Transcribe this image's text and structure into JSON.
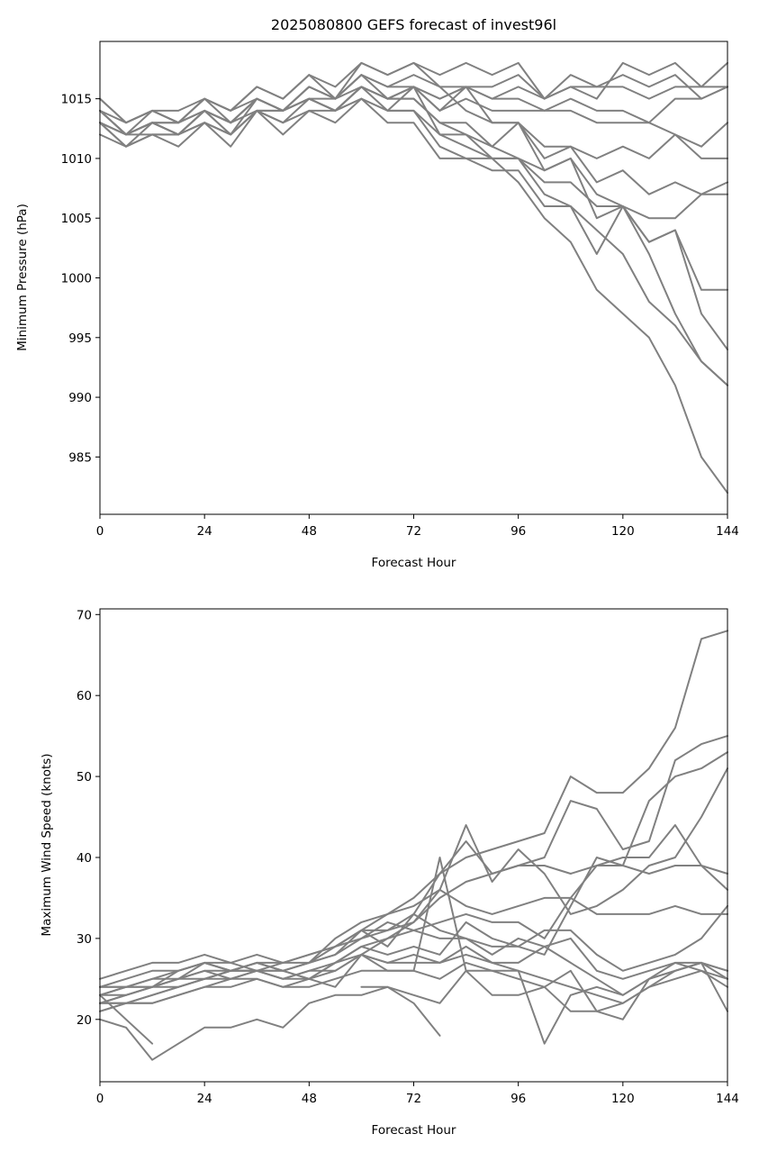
{
  "figure": {
    "title": "2025080800 GEFS forecast of invest96l"
  },
  "chart_data": [
    {
      "type": "line",
      "title": "2025080800 GEFS forecast of invest96l",
      "xlabel": "Forecast Hour",
      "ylabel": "Minimum Pressure (hPa)",
      "xlim": [
        0,
        144
      ],
      "ylim": [
        980.2,
        1019.8
      ],
      "xticks": [
        0,
        24,
        48,
        72,
        96,
        120,
        144
      ],
      "yticks": [
        985,
        990,
        995,
        1000,
        1005,
        1010,
        1015
      ],
      "grid": false,
      "line_color": "#808080",
      "x": [
        0,
        6,
        12,
        18,
        24,
        30,
        36,
        42,
        48,
        54,
        60,
        66,
        72,
        78,
        84,
        90,
        96,
        102,
        108,
        114,
        120,
        126,
        132,
        138,
        144
      ],
      "series": [
        {
          "values": [
            1015,
            1013,
            1014,
            1013,
            1015,
            1013,
            1015,
            1014,
            1016,
            1015,
            1017,
            1016,
            1017,
            1016,
            1016,
            1015,
            1016,
            1015,
            1016,
            1016,
            1016,
            1015,
            1016,
            1016,
            1018
          ]
        },
        {
          "values": [
            1014,
            1012,
            1013,
            1012,
            1014,
            1012,
            1015,
            1014,
            1015,
            1014,
            1016,
            1015,
            1016,
            1015,
            1016,
            1016,
            1017,
            1015,
            1016,
            1015,
            1018,
            1017,
            1018,
            1016,
            1016
          ]
        },
        {
          "values": [
            1013,
            1011,
            1013,
            1012,
            1014,
            1013,
            1014,
            1014,
            1015,
            1014,
            1016,
            1015,
            1016,
            1015,
            1016,
            1015,
            1015,
            1014,
            1014,
            1013,
            1013,
            1013,
            1012,
            1011,
            1013
          ]
        },
        {
          "values": [
            1014,
            1012,
            1014,
            1013,
            1015,
            1014,
            1016,
            1015,
            1017,
            1015,
            1018,
            1017,
            1018,
            1017,
            1018,
            1017,
            1018,
            1015,
            1017,
            1016,
            1017,
            1016,
            1017,
            1015,
            1016
          ]
        },
        {
          "values": [
            1013,
            1012,
            1012,
            1012,
            1013,
            1012,
            1014,
            1013,
            1014,
            1014,
            1015,
            1014,
            1016,
            1014,
            1016,
            1013,
            1013,
            1011,
            1011,
            1010,
            1011,
            1010,
            1012,
            1010,
            1010
          ]
        },
        {
          "values": [
            1014,
            1012,
            1013,
            1013,
            1014,
            1013,
            1015,
            1014,
            1015,
            1015,
            1016,
            1015,
            1016,
            1014,
            1015,
            1014,
            1014,
            1014,
            1015,
            1014,
            1014,
            1013,
            1015,
            1015,
            1016
          ]
        },
        {
          "values": [
            1013,
            1011,
            1012,
            1012,
            1013,
            1012,
            1014,
            1014,
            1015,
            1014,
            1016,
            1015,
            1015,
            1013,
            1013,
            1011,
            1013,
            1010,
            1011,
            1008,
            1009,
            1007,
            1008,
            1007,
            1008
          ]
        },
        {
          "values": [
            1013,
            1012,
            1013,
            1012,
            1014,
            1013,
            1015,
            1014,
            1015,
            1014,
            1015,
            1014,
            1014,
            1012,
            1012,
            1011,
            1010,
            1008,
            1008,
            1006,
            1006,
            1005,
            1005,
            1007,
            1007
          ]
        },
        {
          "values": [
            1014,
            1013,
            1014,
            1013,
            1015,
            1014,
            1015,
            1014,
            1016,
            1015,
            1017,
            1016,
            1016,
            1012,
            1011,
            1010,
            1010,
            1009,
            1010,
            1007,
            1006,
            1003,
            1004,
            999,
            999
          ]
        },
        {
          "values": [
            1012,
            1011,
            1012,
            1011,
            1013,
            1011,
            1014,
            1012,
            1014,
            1013,
            1015,
            1013,
            1013,
            1010,
            1010,
            1009,
            1009,
            1006,
            1006,
            1002,
            1006,
            1003,
            1004,
            997,
            994
          ]
        },
        {
          "values": [
            1014,
            1012,
            1013,
            1012,
            1014,
            1012,
            1014,
            1013,
            1015,
            1014,
            1016,
            1014,
            1014,
            1011,
            1010,
            1010,
            1008,
            1005,
            1003,
            999,
            997,
            995,
            991,
            985,
            982
          ]
        },
        {
          "values": [
            1013,
            1012,
            1013,
            1013,
            1014,
            1013,
            1015,
            1014,
            1016,
            1015,
            1017,
            1015,
            1015,
            1013,
            1012,
            1010,
            1010,
            1007,
            1006,
            1004,
            1002,
            998,
            996,
            993,
            991
          ]
        },
        {
          "values": [
            1015,
            1013,
            1014,
            1014,
            1015,
            1014,
            1016,
            1015,
            1017,
            1016,
            1018,
            1017,
            1018,
            1016,
            1014,
            1013,
            1013,
            1009,
            1010,
            1005,
            1006,
            1002,
            997,
            993,
            991
          ]
        }
      ]
    },
    {
      "type": "line",
      "title": "",
      "xlabel": "Forecast Hour",
      "ylabel": "Maximum Wind Speed (knots)",
      "xlim": [
        0,
        144
      ],
      "ylim": [
        12.3,
        70.7
      ],
      "xticks": [
        0,
        24,
        48,
        72,
        96,
        120,
        144
      ],
      "yticks": [
        20,
        30,
        40,
        50,
        60,
        70
      ],
      "grid": false,
      "line_color": "#808080",
      "x": [
        0,
        6,
        12,
        18,
        24,
        30,
        36,
        42,
        48,
        54,
        60,
        66,
        72,
        78,
        84,
        90,
        96,
        102,
        108,
        114,
        120,
        126,
        132,
        138,
        144
      ],
      "series": [
        {
          "values": [
            22,
            23,
            24,
            25,
            27,
            26,
            27,
            26,
            27,
            29,
            31,
            33,
            35,
            38,
            40,
            41,
            42,
            43,
            50,
            48,
            48,
            51,
            56,
            67,
            68
          ]
        },
        {
          "values": [
            23,
            24,
            25,
            25,
            26,
            25,
            26,
            26,
            27,
            28,
            30,
            31,
            32,
            35,
            37,
            38,
            39,
            40,
            47,
            46,
            41,
            42,
            52,
            54,
            55
          ]
        },
        {
          "values": [
            24,
            25,
            26,
            26,
            27,
            26,
            27,
            27,
            28,
            29,
            31,
            31,
            33,
            38,
            42,
            38,
            39,
            39,
            38,
            39,
            39,
            47,
            50,
            51,
            53
          ]
        },
        {
          "values": [
            25,
            26,
            27,
            27,
            28,
            27,
            26,
            27,
            27,
            30,
            32,
            33,
            34,
            36,
            34,
            33,
            34,
            35,
            35,
            39,
            40,
            40,
            44,
            39,
            36
          ]
        },
        {
          "values": [
            22,
            22,
            23,
            24,
            25,
            26,
            27,
            26,
            25,
            26,
            28,
            30,
            32,
            36,
            44,
            37,
            41,
            38,
            33,
            34,
            36,
            39,
            40,
            45,
            51
          ]
        },
        {
          "values": [
            21,
            22,
            22,
            23,
            24,
            25,
            26,
            25,
            25,
            27,
            29,
            30,
            31,
            32,
            33,
            32,
            32,
            30,
            35,
            33,
            33,
            33,
            34,
            33,
            33
          ]
        },
        {
          "values": [
            24,
            24,
            25,
            26,
            27,
            27,
            28,
            27,
            28,
            29,
            30,
            32,
            31,
            30,
            30,
            29,
            29,
            28,
            34,
            40,
            39,
            38,
            39,
            39,
            38
          ]
        },
        {
          "values": [
            23,
            24,
            24,
            25,
            26,
            26,
            26,
            26,
            27,
            28,
            31,
            29,
            33,
            31,
            30,
            28,
            30,
            29,
            30,
            26,
            25,
            26,
            27,
            26,
            25
          ]
        },
        {
          "values": [
            22,
            23,
            24,
            24,
            25,
            26,
            26,
            25,
            26,
            27,
            29,
            28,
            29,
            28,
            32,
            30,
            29,
            31,
            31,
            28,
            26,
            27,
            28,
            30,
            34
          ]
        },
        {
          "values": [
            23,
            23,
            24,
            25,
            25,
            26,
            26,
            25,
            26,
            26,
            28,
            27,
            28,
            27,
            29,
            27,
            27,
            29,
            27,
            25,
            23,
            25,
            27,
            27,
            26
          ]
        },
        {
          "values": [
            22,
            22,
            23,
            24,
            25,
            25,
            25,
            24,
            25,
            27,
            28,
            27,
            27,
            27,
            28,
            27,
            26,
            25,
            24,
            23,
            22,
            24,
            26,
            27,
            25
          ]
        },
        {
          "values": [
            21,
            22,
            22,
            23,
            24,
            24,
            25,
            24,
            24,
            25,
            26,
            26,
            26,
            25,
            27,
            26,
            25,
            24,
            26,
            21,
            22,
            24,
            25,
            26,
            24
          ]
        },
        {
          "values": [
            20,
            19,
            15,
            17,
            19,
            19,
            20,
            19,
            22,
            23,
            23,
            24,
            23,
            22,
            26,
            23,
            23,
            24,
            21,
            21,
            20,
            25,
            26,
            27,
            21
          ]
        },
        {
          "values": [
            24,
            24,
            24,
            26,
            27,
            26,
            27,
            26,
            25,
            24,
            28,
            26,
            26,
            40,
            26,
            26,
            26,
            17,
            23,
            24,
            23,
            25,
            26,
            27,
            26
          ]
        }
      ],
      "partial_series": [
        {
          "x": [
            0,
            6,
            12
          ],
          "values": [
            23,
            20,
            17
          ]
        },
        {
          "x": [
            60,
            66,
            72,
            78
          ],
          "values": [
            24,
            24,
            22,
            18
          ]
        }
      ]
    }
  ]
}
